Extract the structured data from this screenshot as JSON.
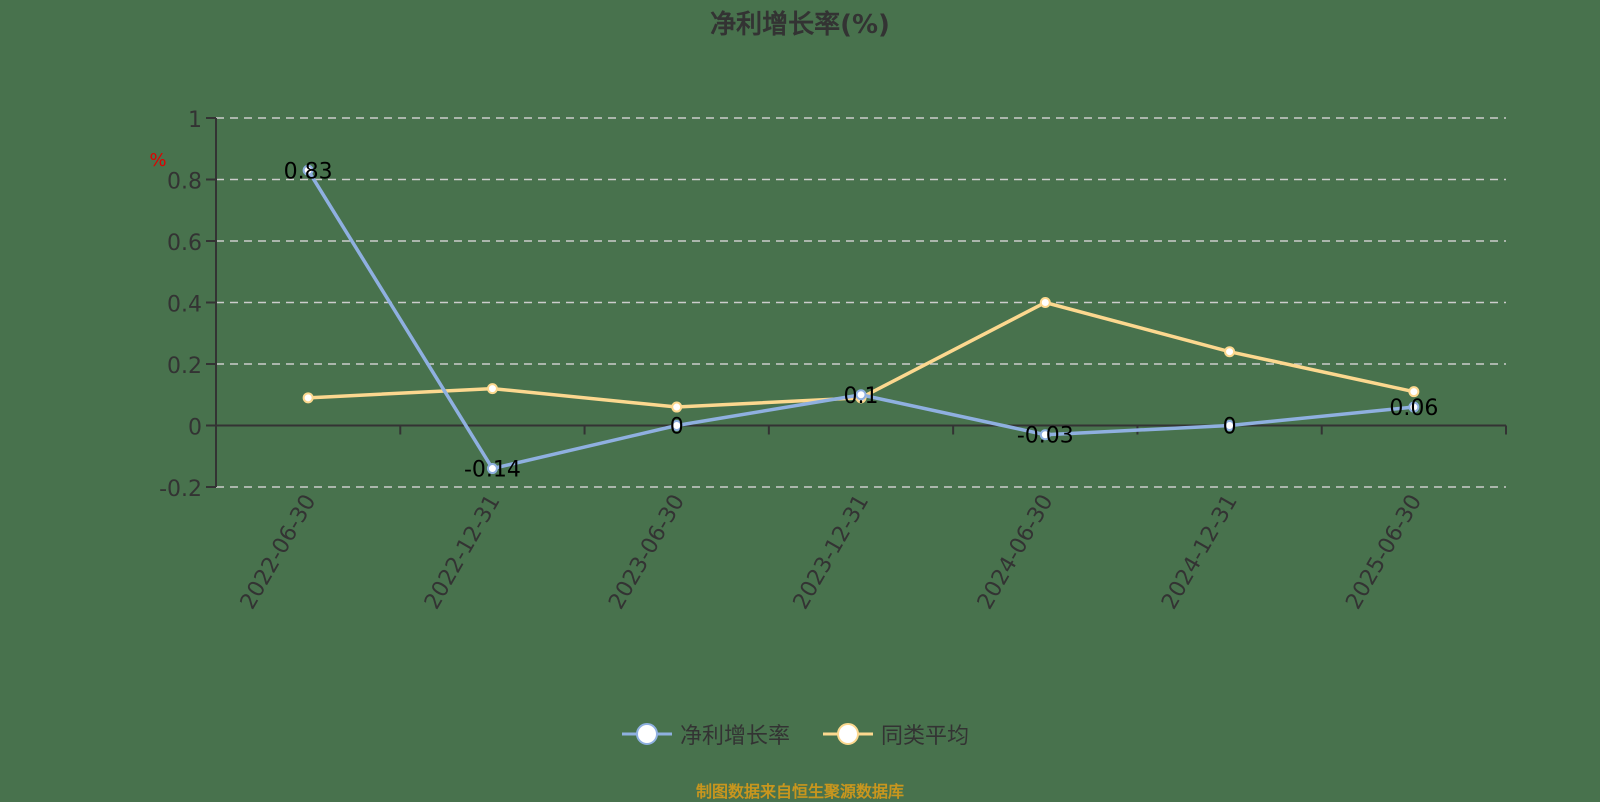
{
  "title": "净利增长率(%)",
  "source": "制图数据来自恒生聚源数据库",
  "colors": {
    "series1": "#8fb0e0",
    "series2": "#fcd88f",
    "axis": "#333333",
    "grid": "#cccccc",
    "unit": "#e00000"
  },
  "chart_data": {
    "type": "line",
    "title": "净利增长率(%)",
    "xlabel": "",
    "ylabel": "%",
    "ylim": [
      -0.2,
      1
    ],
    "yticks": [
      -0.2,
      0,
      0.2,
      0.4,
      0.6,
      0.8,
      1
    ],
    "grid": true,
    "legend_position": "bottom",
    "categories": [
      "2022-06-30",
      "2022-12-31",
      "2023-06-30",
      "2023-12-31",
      "2024-06-30",
      "2024-12-31",
      "2025-06-30"
    ],
    "series": [
      {
        "name": "净利增长率",
        "values": [
          0.83,
          -0.14,
          0,
          0.1,
          -0.03,
          0,
          0.06
        ],
        "labels": [
          "0.83",
          "-0.14",
          "0",
          "0.1",
          "-0.03",
          "0",
          "0.06"
        ]
      },
      {
        "name": "同类平均",
        "values": [
          0.09,
          0.12,
          0.06,
          0.09,
          0.4,
          0.24,
          0.11
        ]
      }
    ]
  },
  "legend": [
    {
      "label": "净利增长率"
    },
    {
      "label": "同类平均"
    }
  ]
}
